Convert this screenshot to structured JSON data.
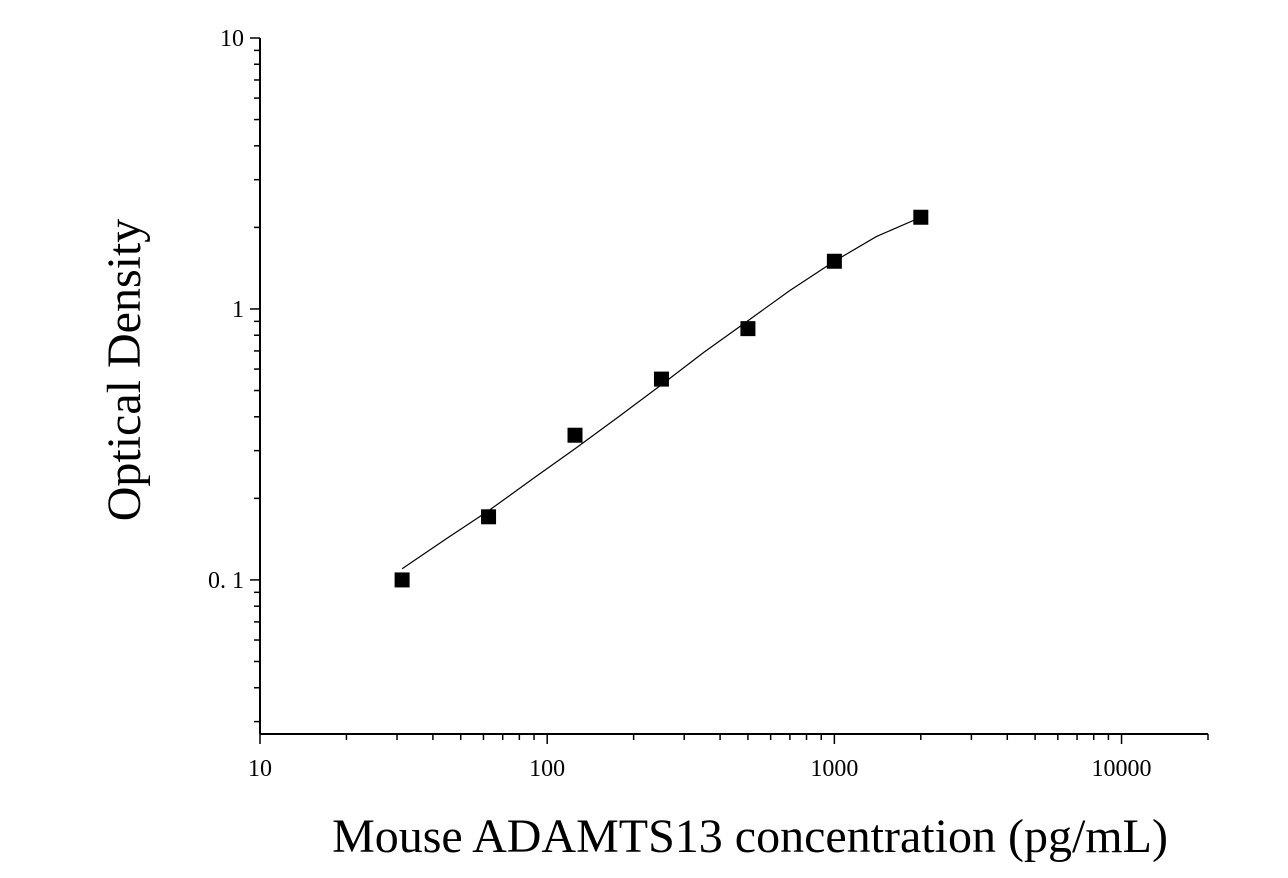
{
  "chart_data": {
    "type": "scatter",
    "title": "",
    "xlabel": "Mouse ADAMTS13 concentration (pg/mL)",
    "ylabel": "Optical Density",
    "x_scale": "log",
    "y_scale": "log",
    "xlim": [
      10,
      20000
    ],
    "ylim": [
      0.027,
      10
    ],
    "x_ticks": [
      10,
      100,
      1000,
      10000
    ],
    "x_tick_labels": [
      "10",
      "100",
      "1000",
      "10000"
    ],
    "y_ticks": [
      0.1,
      1,
      10
    ],
    "y_tick_labels": [
      "0. 1",
      "1",
      "10"
    ],
    "grid": false,
    "legend": "none",
    "marker_color": "#000000",
    "line_color": "#000000",
    "series": [
      {
        "marker": "square",
        "x": [
          31.25,
          62.5,
          125,
          250,
          500,
          1000,
          2000
        ],
        "y": [
          0.1,
          0.171,
          0.342,
          0.551,
          0.846,
          1.5,
          2.18
        ]
      }
    ],
    "fit_curve": {
      "x": [
        31.25,
        45,
        62.5,
        90,
        125,
        180,
        250,
        350,
        500,
        700,
        1000,
        1400,
        2000
      ],
      "y": [
        0.11,
        0.143,
        0.18,
        0.238,
        0.305,
        0.405,
        0.525,
        0.69,
        0.905,
        1.17,
        1.5,
        1.85,
        2.18
      ]
    }
  }
}
